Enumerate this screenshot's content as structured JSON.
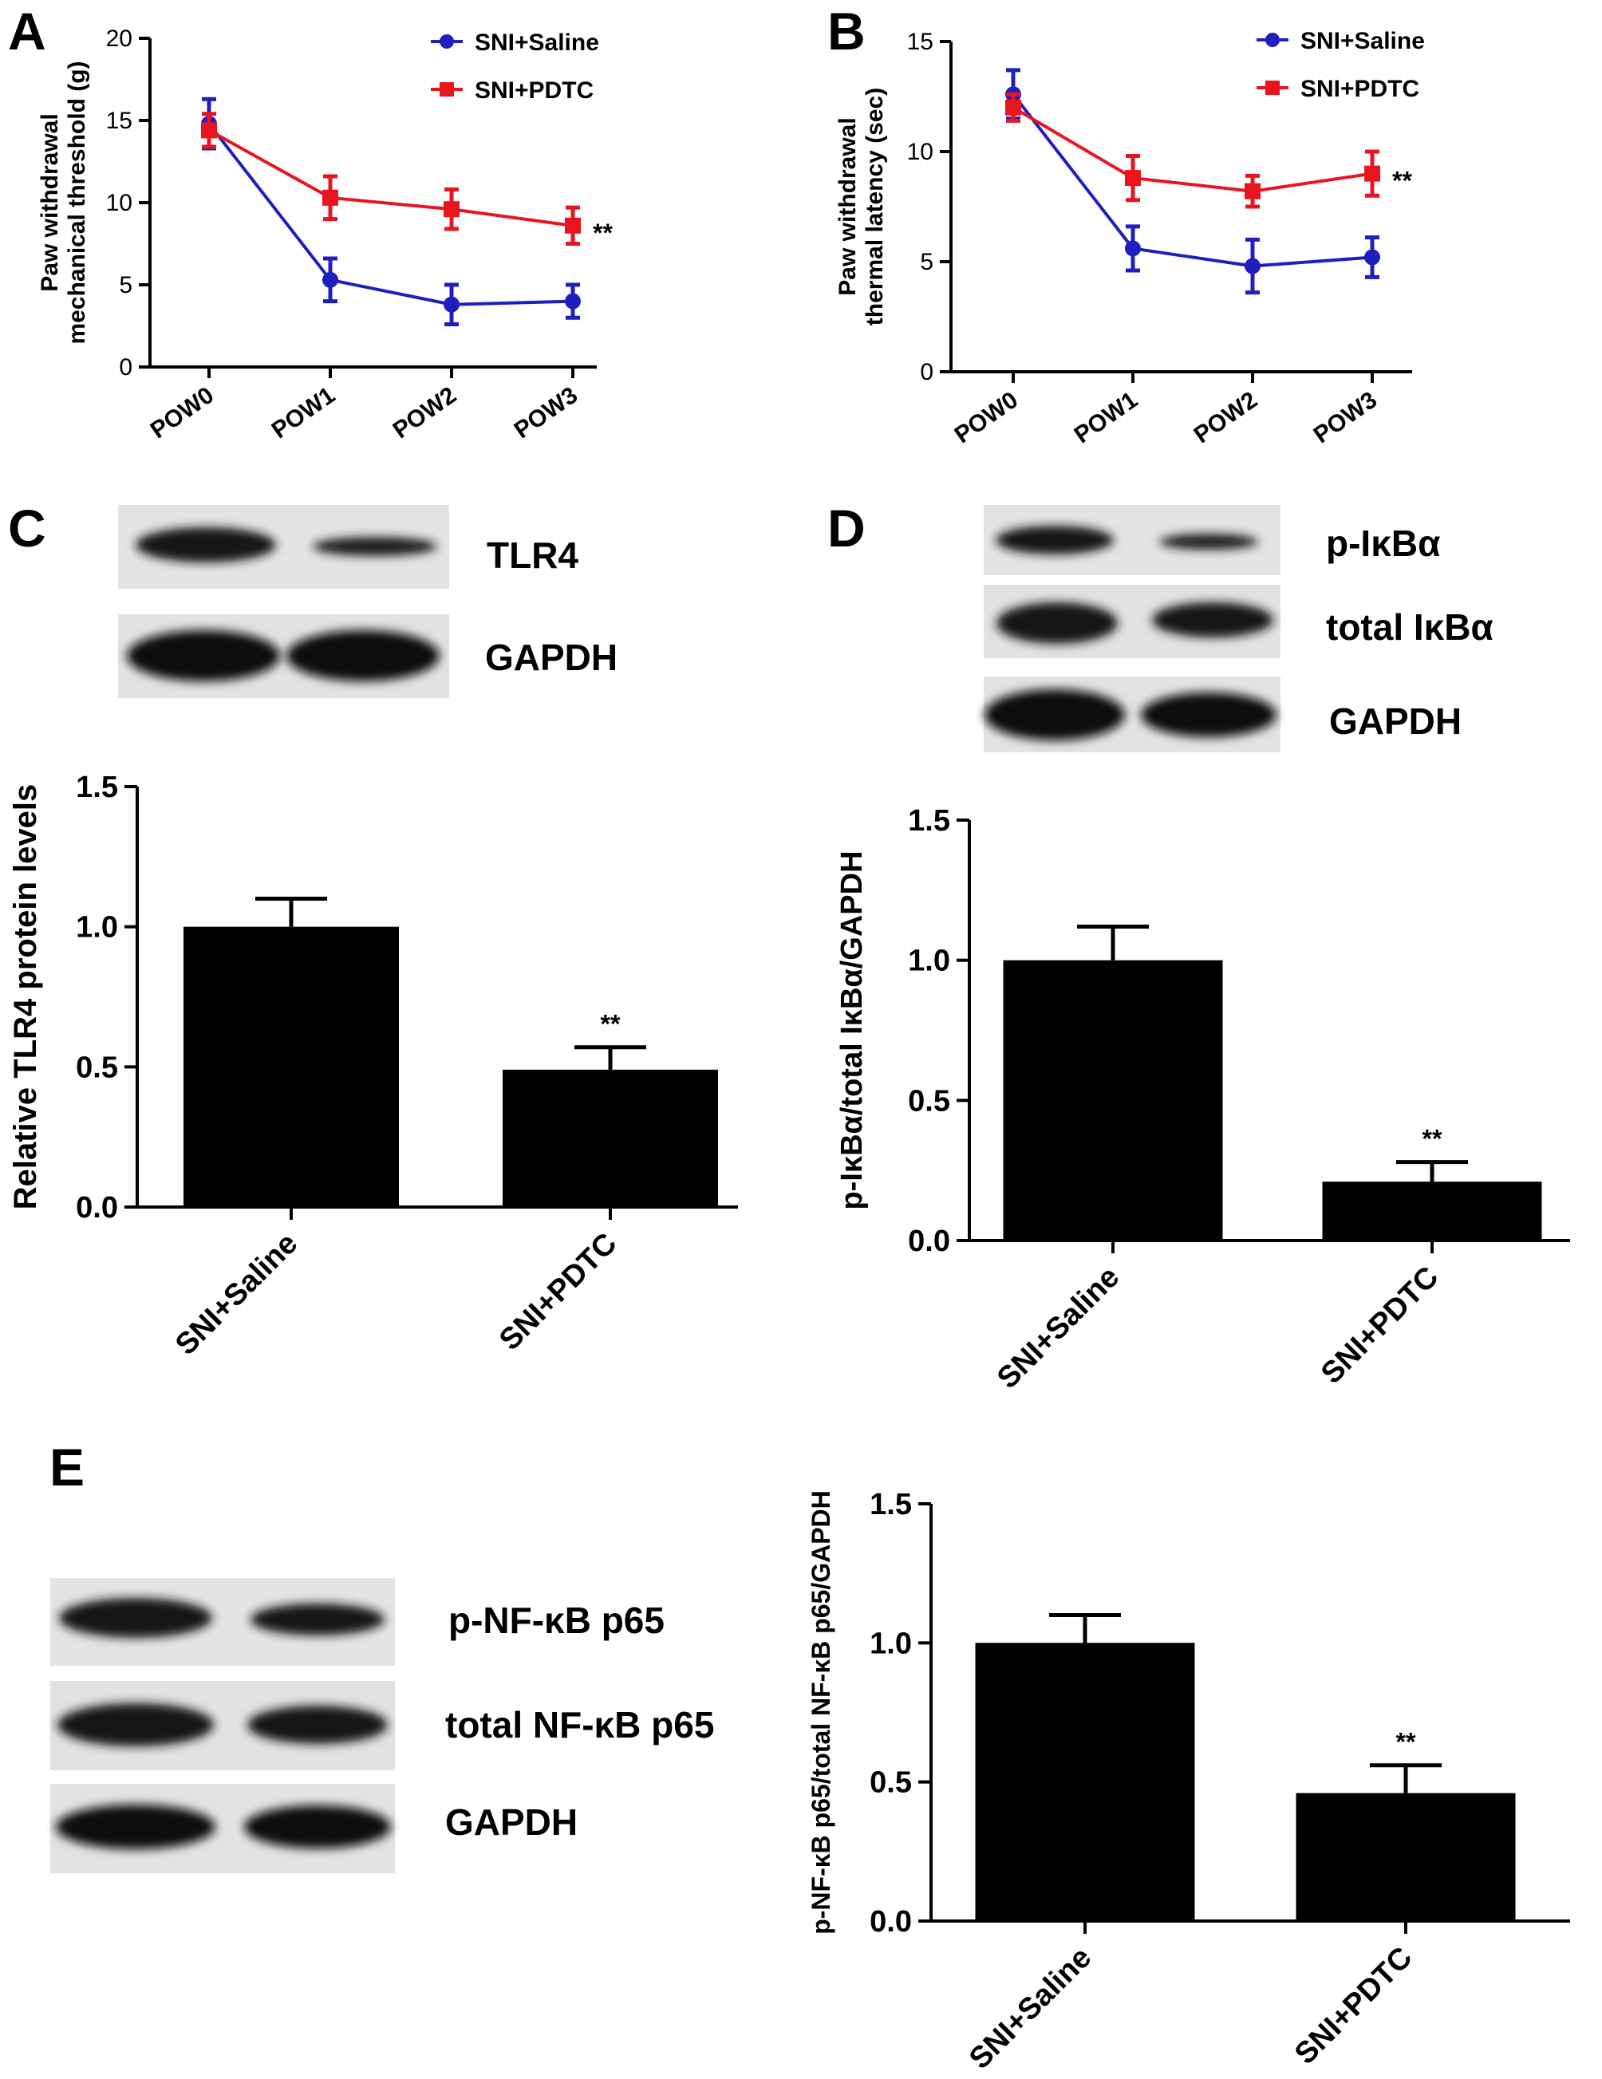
{
  "panels": {
    "A": {
      "letter": "A",
      "chart_data": {
        "type": "line",
        "categories": [
          "POW0",
          "POW1",
          "POW2",
          "POW3"
        ],
        "ylabel": [
          "Paw withdrawal",
          "mechanical threshold (g)"
        ],
        "ylim": [
          0,
          20
        ],
        "yticks": [
          0,
          5,
          10,
          15,
          20
        ],
        "grid": false,
        "legend_position": "top-right",
        "series": [
          {
            "name": "SNI+Saline",
            "color": "#1f1fbf",
            "marker": "circle",
            "values": [
              14.8,
              5.3,
              3.8,
              4.0
            ],
            "errors": [
              1.5,
              1.3,
              1.2,
              1.0
            ]
          },
          {
            "name": "SNI+PDTC",
            "color": "#e8141e",
            "marker": "square",
            "values": [
              14.4,
              10.3,
              9.6,
              8.6
            ],
            "errors": [
              1.0,
              1.3,
              1.2,
              1.1
            ]
          }
        ],
        "annotation": "**"
      }
    },
    "B": {
      "letter": "B",
      "chart_data": {
        "type": "line",
        "categories": [
          "POW0",
          "POW1",
          "POW2",
          "POW3"
        ],
        "ylabel": [
          "Paw withdrawal",
          "thermal latency (sec)"
        ],
        "ylim": [
          0,
          15
        ],
        "yticks": [
          0,
          5,
          10,
          15
        ],
        "grid": false,
        "legend_position": "top-right",
        "series": [
          {
            "name": "SNI+Saline",
            "color": "#1f1fbf",
            "marker": "circle",
            "values": [
              12.6,
              5.6,
              4.8,
              5.2
            ],
            "errors": [
              1.1,
              1.0,
              1.2,
              0.9
            ]
          },
          {
            "name": "SNI+PDTC",
            "color": "#e8141e",
            "marker": "square",
            "values": [
              12.0,
              8.8,
              8.2,
              9.0
            ],
            "errors": [
              0.6,
              1.0,
              0.7,
              1.0
            ]
          }
        ],
        "annotation": "**"
      }
    },
    "C": {
      "letter": "C",
      "blot_labels": [
        "TLR4",
        "GAPDH"
      ],
      "chart_data": {
        "type": "bar",
        "categories": [
          "SNI+Saline",
          "SNI+PDTC"
        ],
        "values": [
          1.0,
          0.49
        ],
        "errors": [
          0.1,
          0.08
        ],
        "ylabel": "Relative TLR4 protein levels",
        "ylim": [
          0,
          1.5
        ],
        "yticks": [
          "0.0",
          "0.5",
          "1.0",
          "1.5"
        ],
        "grid": false,
        "annotation": "**"
      }
    },
    "D": {
      "letter": "D",
      "blot_labels": [
        "p-IκBα",
        "total IκBα",
        "GAPDH"
      ],
      "chart_data": {
        "type": "bar",
        "categories": [
          "SNI+Saline",
          "SNI+PDTC"
        ],
        "values": [
          1.0,
          0.21
        ],
        "errors": [
          0.12,
          0.07
        ],
        "ylabel": "p-IκBα/total IκBα/GAPDH",
        "ylim": [
          0,
          1.5
        ],
        "yticks": [
          "0.0",
          "0.5",
          "1.0",
          "1.5"
        ],
        "grid": false,
        "annotation": "**"
      }
    },
    "E": {
      "letter": "E",
      "blot_labels": [
        "p-NF-κB p65",
        "total NF-κB p65",
        "GAPDH"
      ],
      "chart_data": {
        "type": "bar",
        "categories": [
          "SNI+Saline",
          "SNI+PDTC"
        ],
        "values": [
          1.0,
          0.46
        ],
        "errors": [
          0.1,
          0.1
        ],
        "ylabel": "p-NF-κB p65/total NF-κB p65/GAPDH",
        "ylim": [
          0,
          1.5
        ],
        "yticks": [
          "0.0",
          "0.5",
          "1.0",
          "1.5"
        ],
        "grid": false,
        "annotation": "**"
      }
    }
  },
  "colors": {
    "saline": "#1f1fbf",
    "pdtc": "#e8141e",
    "bar": "#000000",
    "blot_background": "#e4e4e4",
    "band": "#161616"
  }
}
